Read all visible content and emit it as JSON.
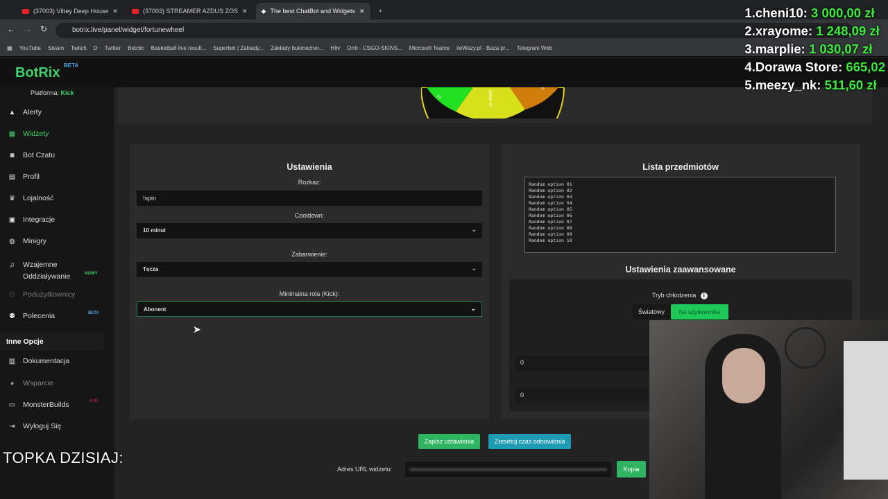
{
  "browser": {
    "tabs": [
      {
        "label": "(37003) Vibey Deep House"
      },
      {
        "label": "(37003) STREAMER AZDUS ZOS"
      },
      {
        "label": "The best ChatBot and Widgets"
      }
    ],
    "url": "botrix.live/panel/widget/fortunewheel",
    "bookmarks": [
      "YouTube",
      "Steam",
      "Twitch",
      "D",
      "Twitter",
      "Betclic",
      "Basketball live result...",
      "Superbet | Zakłady...",
      "Zakłady bukmacher...",
      "Hltv",
      "Orrti - CSGO-SKINS...",
      "Microsoft Teams",
      "IleWazy.pl - Baza pr...",
      "Telegram Web"
    ]
  },
  "app": {
    "logo": "BotRix",
    "logo_badge": "BETA",
    "platform_label": "Platforma:",
    "platform": "Kick",
    "accent": "#3fd16b"
  },
  "sidebar": {
    "items": [
      {
        "label": "Alerty",
        "icon": "warning-icon"
      },
      {
        "label": "Widżety",
        "icon": "grid-icon",
        "active": true
      },
      {
        "label": "Bot Czatu",
        "icon": "robot-icon"
      },
      {
        "label": "Profil",
        "icon": "id-card-icon"
      },
      {
        "label": "Lojalność",
        "icon": "trophy-icon"
      },
      {
        "label": "Integracje",
        "icon": "plug-icon"
      },
      {
        "label": "Minigry",
        "icon": "gamepad-icon"
      },
      {
        "label": "Wzajemne Oddziaływanie",
        "icon": "music-icon",
        "badge": "NOWY"
      },
      {
        "label": "Podużytkownicy",
        "icon": "users-icon",
        "disabled": true
      },
      {
        "label": "Polecenia",
        "icon": "users-icon",
        "badge": "BETA"
      }
    ],
    "section": "Inne Opcje",
    "other": [
      {
        "label": "Dokumentacja",
        "icon": "book-icon"
      },
      {
        "label": "Wsparcie",
        "icon": "support-icon"
      },
      {
        "label": "MonsterBuilds",
        "icon": "laptop-icon",
        "badge": "#AD"
      },
      {
        "label": "Wyloguj Się",
        "icon": "logout-icon"
      }
    ]
  },
  "wheel": {
    "visible_labels": [
      "10",
      "option 07",
      "04"
    ]
  },
  "settings": {
    "title": "Ustawienia",
    "command_label": "Rozkaz:",
    "command_value": "!spin",
    "cooldown_label": "Cooldown:",
    "cooldown_value": "10 minut",
    "color_label": "Zabarwienie:",
    "color_value": "Tęcza",
    "role_label": "Minimalna rola (Kick):",
    "role_value": "Abonent"
  },
  "items": {
    "title": "Lista przedmiotów",
    "list": "Random option 01\nRandom option 02\nRandom option 03\nRandom option 04\nRandom option 05\nRandom option 06\nRandom option 07\nRandom option 08\nRandom option 09\nRandom option 10"
  },
  "advanced": {
    "title": "Ustawienia zaawansowane",
    "cooldown_mode_label": "Tryb chłodzenia",
    "mode_global": "Światowy",
    "mode_user": "Na użytkownika",
    "active_mode": "Na użytkownika",
    "value1": "0",
    "value2": "0"
  },
  "actions": {
    "save": "Zapisz ustawienia",
    "reset": "Zresetuj czas odnowienia",
    "url_label": "Adres URL widżetu:",
    "copy": "Kopia"
  },
  "stream_overlay": {
    "title": "TOPKA DZISIAJ:",
    "leaderboard": [
      {
        "rank": "1.",
        "name": "cheni10:",
        "amount": "3 000,00 zł"
      },
      {
        "rank": "2.",
        "name": "xrayome:",
        "amount": "1 248,09 zł"
      },
      {
        "rank": "3.",
        "name": "marplie:",
        "amount": "1 030,07 zł"
      },
      {
        "rank": "4.",
        "name": "Dorawa Store:",
        "amount": "665,02"
      },
      {
        "rank": "5.",
        "name": "meezy_nk:",
        "amount": "511,60 zł"
      }
    ]
  }
}
